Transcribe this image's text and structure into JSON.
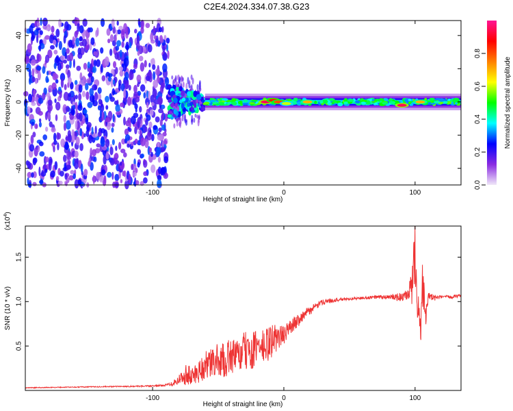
{
  "figure": {
    "title": "C2E4.2024.334.07.38.G23"
  },
  "chart_data": [
    {
      "type": "heatmap",
      "title": "C2E4.2024.334.07.38.G23",
      "xlabel": "Height of straight line (km)",
      "ylabel": "Frequency (Hz)",
      "xlim": [
        -197,
        135
      ],
      "ylim": [
        -50,
        49
      ],
      "xticks": [
        -100,
        0,
        100
      ],
      "xtick_labels": [
        "-100",
        "0",
        "100"
      ],
      "yticks": [
        40,
        20,
        0,
        -20,
        -40
      ],
      "ytick_labels": [
        "40",
        "20",
        "0",
        "-20",
        "-40"
      ],
      "colorbar": {
        "label": "Normalized spectral amplitude",
        "range": [
          0,
          1
        ],
        "ticks": [
          0.0,
          0.2,
          0.4,
          0.6,
          0.8
        ],
        "tick_labels": [
          "0.0",
          "0.2",
          "0.4",
          "0.6",
          "0.8"
        ],
        "colors": [
          "#f0e8f8",
          "#8a2be2",
          "#0000ff",
          "#00ffff",
          "#00ff00",
          "#ffff00",
          "#ff8000",
          "#ff0000",
          "#ff1493"
        ]
      },
      "regions": [
        {
          "x_range": [
            -197,
            -88
          ],
          "f_range": [
            -50,
            49
          ],
          "amplitude": 0.1,
          "pattern": "speckled noise"
        },
        {
          "x_range": [
            -88,
            -60
          ],
          "f_range": [
            -10,
            10
          ],
          "amplitude": 0.35,
          "pattern": "turbulent band"
        },
        {
          "x_range": [
            -60,
            135
          ],
          "f_range": [
            -4,
            4
          ],
          "amplitude": 0.4,
          "pattern": "narrow band near 0 Hz"
        }
      ],
      "hotspots": [
        {
          "x": -14,
          "f": 0,
          "amplitude": 0.95
        },
        {
          "x": -8,
          "f": 1,
          "amplitude": 0.85
        },
        {
          "x": -4,
          "f": 0,
          "amplitude": 0.8
        },
        {
          "x": 2,
          "f": -1,
          "amplitude": 0.6
        },
        {
          "x": 18,
          "f": 0,
          "amplitude": 0.7
        },
        {
          "x": 90,
          "f": -2,
          "amplitude": 0.95
        },
        {
          "x": 104,
          "f": 0,
          "amplitude": 0.7
        }
      ]
    },
    {
      "type": "line",
      "xlabel": "Height of straight line (km)",
      "ylabel": "SNR (10 * v/v)",
      "y_multiplier": "(x10",
      "y_multiplier_exp": "4",
      "y_multiplier_close": ")",
      "xlim": [
        -197,
        135
      ],
      "ylim": [
        0,
        1.85
      ],
      "xticks": [
        -100,
        0,
        100
      ],
      "xtick_labels": [
        "-100",
        "0",
        "100"
      ],
      "yticks": [
        0.5,
        1.0,
        1.5
      ],
      "ytick_labels": [
        "0.5",
        "1.0",
        "1.5"
      ],
      "series": [
        {
          "color": "#ee3333",
          "x": [
            -197,
            -150,
            -100,
            -90,
            -85,
            -80,
            -75,
            -70,
            -65,
            -60,
            -55,
            -50,
            -45,
            -40,
            -35,
            -30,
            -25,
            -20,
            -15,
            -10,
            -5,
            0,
            5,
            10,
            15,
            20,
            25,
            30,
            40,
            50,
            60,
            70,
            80,
            90,
            95,
            98,
            100,
            102,
            104,
            106,
            108,
            110,
            115,
            120,
            125,
            130,
            135
          ],
          "y": [
            0.03,
            0.04,
            0.05,
            0.06,
            0.08,
            0.12,
            0.18,
            0.15,
            0.22,
            0.28,
            0.3,
            0.35,
            0.33,
            0.4,
            0.37,
            0.45,
            0.42,
            0.5,
            0.48,
            0.55,
            0.6,
            0.62,
            0.72,
            0.78,
            0.85,
            0.9,
            0.95,
            1.0,
            1.02,
            1.03,
            1.04,
            1.05,
            1.05,
            1.05,
            1.06,
            1.2,
            1.6,
            1.05,
            0.7,
            1.25,
            0.9,
            1.05,
            1.04,
            1.05,
            1.05,
            1.06,
            1.07
          ],
          "noise": [
            0.005,
            0.005,
            0.008,
            0.01,
            0.03,
            0.06,
            0.12,
            0.12,
            0.14,
            0.16,
            0.18,
            0.18,
            0.2,
            0.2,
            0.2,
            0.22,
            0.2,
            0.22,
            0.2,
            0.2,
            0.16,
            0.1,
            0.08,
            0.08,
            0.06,
            0.05,
            0.04,
            0.03,
            0.02,
            0.015,
            0.015,
            0.02,
            0.03,
            0.05,
            0.08,
            0.25,
            0.35,
            0.3,
            0.35,
            0.35,
            0.2,
            0.06,
            0.03,
            0.02,
            0.02,
            0.02,
            0.02
          ]
        }
      ]
    }
  ]
}
